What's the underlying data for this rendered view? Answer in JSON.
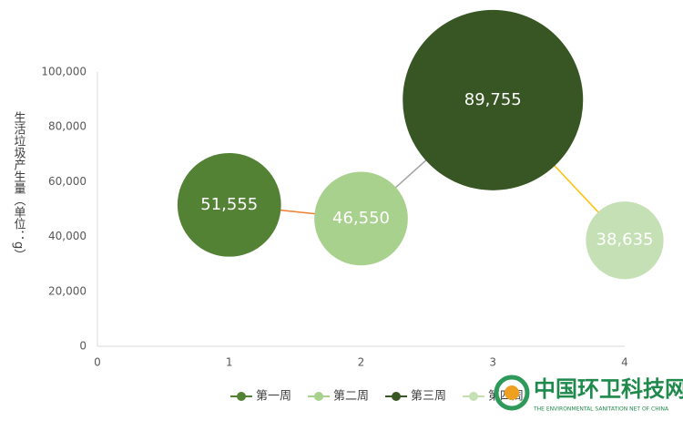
{
  "chart_data": {
    "type": "bubble",
    "y_label": "生活垃圾产生量（单位：g）",
    "series": [
      {
        "name": "第一周",
        "color": "#548235",
        "x": [
          1
        ],
        "values": [
          51555
        ],
        "sizes": [
          51555
        ],
        "value_labels": [
          "51,555"
        ]
      },
      {
        "name": "第二周",
        "color": "#a9d18e",
        "x": [
          2
        ],
        "values": [
          46550
        ],
        "sizes": [
          46550
        ],
        "value_labels": [
          "46,550"
        ]
      },
      {
        "name": "第三周",
        "color": "#375623",
        "x": [
          3
        ],
        "values": [
          89755
        ],
        "sizes": [
          89755
        ],
        "value_labels": [
          "89,755"
        ]
      },
      {
        "name": "第四周",
        "color": "#c5e0b4",
        "x": [
          4
        ],
        "values": [
          38635
        ],
        "sizes": [
          38635
        ],
        "value_labels": [
          "38,635"
        ]
      }
    ],
    "connector_colors": [
      "#ed7d31",
      "#a5a5a5",
      "#ffc000"
    ],
    "xlim": [
      0,
      4
    ],
    "xticks": [
      0,
      1,
      2,
      3,
      4
    ],
    "ylim": [
      0,
      100000
    ],
    "yticks": [
      0,
      {
        "value": 20000,
        "label": "20,000"
      },
      {
        "value": 40000,
        "label": "40,000"
      },
      {
        "value": 60000,
        "label": "60,000"
      },
      {
        "value": 80000,
        "label": "80,000"
      },
      {
        "value": 100000,
        "label": "100,000"
      }
    ],
    "legend": "bottom",
    "grid": false
  },
  "watermark": {
    "title": "中国环卫科技网",
    "subtitle": "THE ENVIRONMENTAL SANITATION NET OF CHINA"
  }
}
